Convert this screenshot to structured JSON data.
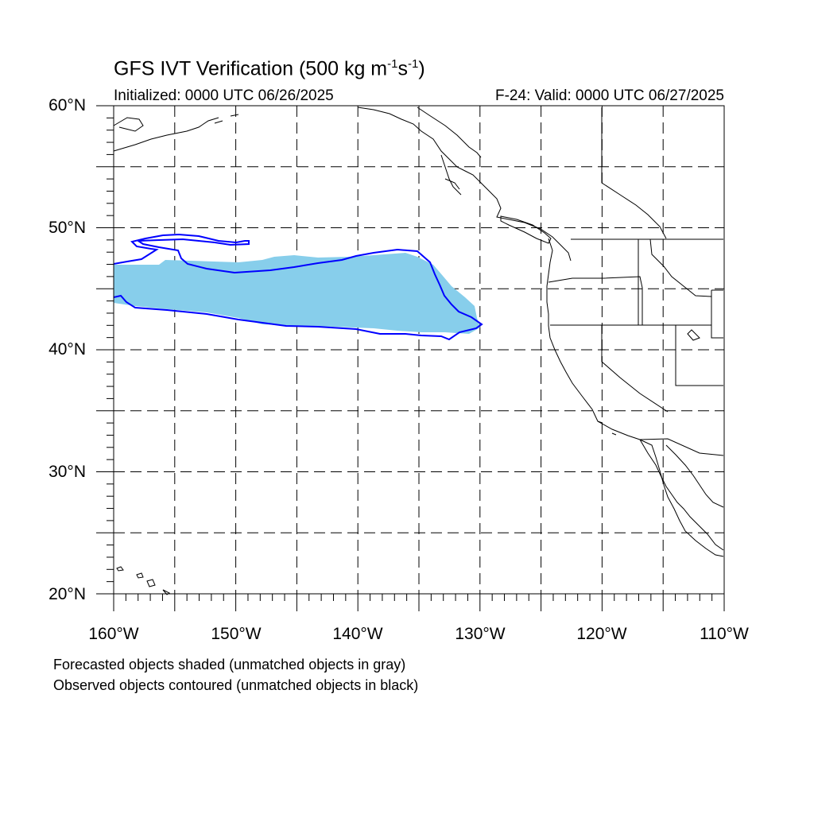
{
  "title": {
    "main": "GFS IVT Verification (500 kg m",
    "exp1": "-1",
    "mid": "s",
    "exp2": "-1",
    "end": ")"
  },
  "initialized": "Initialized: 0000 UTC 06/26/2025",
  "valid": "F-24: Valid: 0000 UTC 06/27/2025",
  "lat_labels": [
    "60°N",
    "50°N",
    "40°N",
    "30°N",
    "20°N"
  ],
  "lon_labels": [
    "160°W",
    "150°W",
    "140°W",
    "130°W",
    "120°W",
    "110°W"
  ],
  "footnotes": [
    "Forecasted objects shaded (unmatched objects in gray)",
    "Observed objects contoured (unmatched objects in black)"
  ],
  "colors": {
    "forecast_fill": "#87ceeb",
    "observed_contour": "#0000ff",
    "coastline": "#000000",
    "grid": "#000000"
  }
}
